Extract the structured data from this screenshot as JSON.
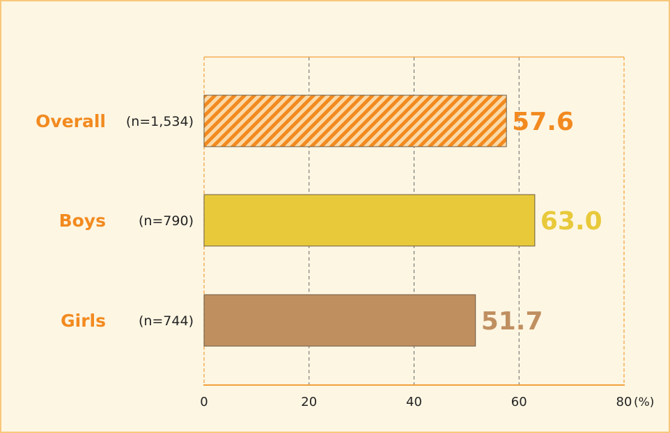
{
  "chart_data": {
    "type": "bar",
    "orientation": "horizontal",
    "categories": [
      "Overall",
      "Boys",
      "Girls"
    ],
    "sample_sizes": [
      "(n=1,534)",
      "(n=790)",
      "(n=744)"
    ],
    "values": [
      57.6,
      63.0,
      51.7
    ],
    "value_labels": [
      "57.6",
      "63.0",
      "51.7"
    ],
    "bar_colors": [
      "#f28a1f",
      "#e8c93a",
      "#c08f60"
    ],
    "bar_patterns": [
      "hatched",
      "solid",
      "solid"
    ],
    "value_label_colors": [
      "#f28a1f",
      "#e8c93a",
      "#c08f60"
    ],
    "category_label_color": "#f28a1f",
    "xlim": [
      0,
      80
    ],
    "xticks": [
      0,
      20,
      40,
      60,
      80
    ],
    "tick_labels": [
      "0",
      "20",
      "40",
      "60",
      "80"
    ],
    "unit": "(%)",
    "grid": "vertical dashed",
    "plot_border_color": "#f2a03a"
  }
}
